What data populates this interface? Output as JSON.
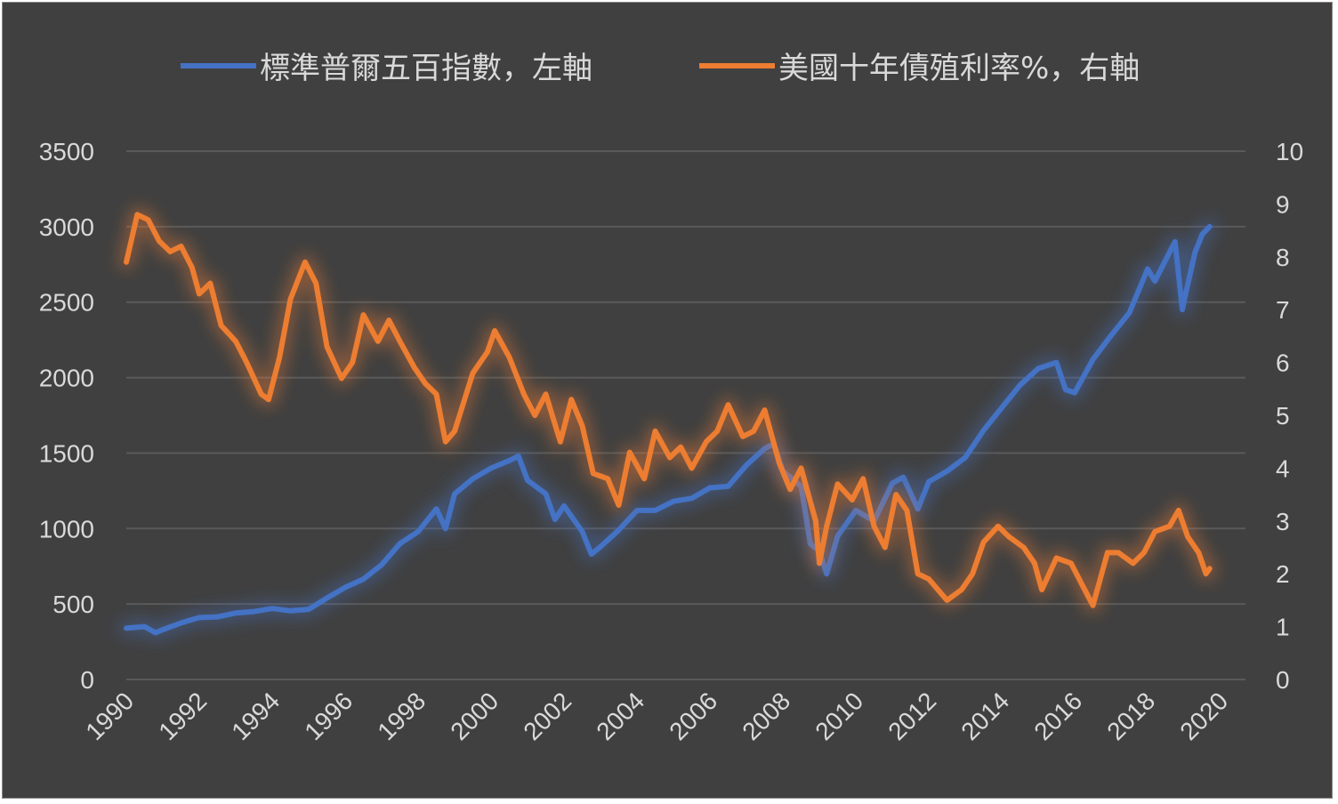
{
  "chart_data": {
    "type": "line",
    "title": "",
    "xlabel": "",
    "ylabel": "",
    "x_ticks": [
      "1990",
      "1992",
      "1994",
      "1996",
      "1998",
      "2000",
      "2002",
      "2004",
      "2006",
      "2008",
      "2010",
      "2012",
      "2014",
      "2016",
      "2018",
      "2020"
    ],
    "xlim": [
      1990,
      2020
    ],
    "y_left": {
      "ticks": [
        "0",
        "500",
        "1000",
        "1500",
        "2000",
        "2500",
        "3000",
        "3500"
      ],
      "ylim": [
        0,
        3500
      ]
    },
    "y_right": {
      "ticks": [
        "0",
        "1",
        "2",
        "3",
        "4",
        "5",
        "6",
        "7",
        "8",
        "9",
        "10"
      ],
      "ylim": [
        0,
        10
      ]
    },
    "grid": true,
    "legend_position": "top",
    "series": [
      {
        "name": "標準普爾五百指數，左軸",
        "axis": "left",
        "color": "#4472c4",
        "points": [
          [
            1990.0,
            340
          ],
          [
            1990.5,
            350
          ],
          [
            1990.8,
            310
          ],
          [
            1991.0,
            330
          ],
          [
            1991.5,
            375
          ],
          [
            1992.0,
            410
          ],
          [
            1992.5,
            415
          ],
          [
            1993.0,
            440
          ],
          [
            1993.5,
            450
          ],
          [
            1994.0,
            470
          ],
          [
            1994.5,
            455
          ],
          [
            1995.0,
            465
          ],
          [
            1995.5,
            540
          ],
          [
            1996.0,
            610
          ],
          [
            1996.5,
            665
          ],
          [
            1997.0,
            760
          ],
          [
            1997.5,
            900
          ],
          [
            1998.0,
            980
          ],
          [
            1998.5,
            1130
          ],
          [
            1998.75,
            1000
          ],
          [
            1999.0,
            1230
          ],
          [
            1999.5,
            1330
          ],
          [
            2000.0,
            1400
          ],
          [
            2000.5,
            1450
          ],
          [
            2000.75,
            1480
          ],
          [
            2001.0,
            1320
          ],
          [
            2001.5,
            1230
          ],
          [
            2001.75,
            1060
          ],
          [
            2002.0,
            1150
          ],
          [
            2002.5,
            980
          ],
          [
            2002.75,
            830
          ],
          [
            2003.0,
            880
          ],
          [
            2003.5,
            990
          ],
          [
            2004.0,
            1120
          ],
          [
            2004.5,
            1120
          ],
          [
            2005.0,
            1180
          ],
          [
            2005.5,
            1200
          ],
          [
            2006.0,
            1270
          ],
          [
            2006.5,
            1280
          ],
          [
            2007.0,
            1420
          ],
          [
            2007.5,
            1530
          ],
          [
            2007.75,
            1560
          ],
          [
            2008.0,
            1380
          ],
          [
            2008.5,
            1280
          ],
          [
            2008.75,
            900
          ],
          [
            2009.0,
            850
          ],
          [
            2009.2,
            700
          ],
          [
            2009.5,
            950
          ],
          [
            2010.0,
            1120
          ],
          [
            2010.5,
            1050
          ],
          [
            2011.0,
            1300
          ],
          [
            2011.3,
            1340
          ],
          [
            2011.7,
            1130
          ],
          [
            2012.0,
            1310
          ],
          [
            2012.5,
            1380
          ],
          [
            2013.0,
            1470
          ],
          [
            2013.5,
            1650
          ],
          [
            2014.0,
            1800
          ],
          [
            2014.5,
            1950
          ],
          [
            2015.0,
            2060
          ],
          [
            2015.5,
            2100
          ],
          [
            2015.75,
            1920
          ],
          [
            2016.0,
            1900
          ],
          [
            2016.5,
            2120
          ],
          [
            2017.0,
            2280
          ],
          [
            2017.5,
            2430
          ],
          [
            2018.0,
            2720
          ],
          [
            2018.2,
            2640
          ],
          [
            2018.75,
            2900
          ],
          [
            2018.95,
            2450
          ],
          [
            2019.0,
            2510
          ],
          [
            2019.3,
            2830
          ],
          [
            2019.5,
            2950
          ],
          [
            2019.7,
            3000
          ]
        ]
      },
      {
        "name": "美國十年債殖利率%，右軸",
        "axis": "right",
        "color": "#ed7d31",
        "points": [
          [
            1990.0,
            7.9
          ],
          [
            1990.3,
            8.8
          ],
          [
            1990.6,
            8.7
          ],
          [
            1990.9,
            8.3
          ],
          [
            1991.2,
            8.1
          ],
          [
            1991.5,
            8.2
          ],
          [
            1991.8,
            7.8
          ],
          [
            1992.0,
            7.3
          ],
          [
            1992.3,
            7.5
          ],
          [
            1992.6,
            6.7
          ],
          [
            1993.0,
            6.4
          ],
          [
            1993.3,
            6.0
          ],
          [
            1993.7,
            5.4
          ],
          [
            1993.9,
            5.3
          ],
          [
            1994.2,
            6.1
          ],
          [
            1994.5,
            7.2
          ],
          [
            1994.9,
            7.9
          ],
          [
            1995.2,
            7.5
          ],
          [
            1995.5,
            6.3
          ],
          [
            1995.9,
            5.7
          ],
          [
            1996.2,
            6.0
          ],
          [
            1996.5,
            6.9
          ],
          [
            1996.9,
            6.4
          ],
          [
            1997.2,
            6.8
          ],
          [
            1997.5,
            6.4
          ],
          [
            1997.9,
            5.9
          ],
          [
            1998.2,
            5.6
          ],
          [
            1998.5,
            5.4
          ],
          [
            1998.75,
            4.5
          ],
          [
            1999.0,
            4.7
          ],
          [
            1999.5,
            5.8
          ],
          [
            1999.9,
            6.2
          ],
          [
            2000.1,
            6.6
          ],
          [
            2000.5,
            6.1
          ],
          [
            2000.9,
            5.4
          ],
          [
            2001.2,
            5.0
          ],
          [
            2001.5,
            5.4
          ],
          [
            2001.9,
            4.5
          ],
          [
            2002.2,
            5.3
          ],
          [
            2002.5,
            4.8
          ],
          [
            2002.8,
            3.9
          ],
          [
            2003.2,
            3.8
          ],
          [
            2003.5,
            3.3
          ],
          [
            2003.8,
            4.3
          ],
          [
            2004.2,
            3.8
          ],
          [
            2004.5,
            4.7
          ],
          [
            2004.9,
            4.2
          ],
          [
            2005.2,
            4.4
          ],
          [
            2005.5,
            4.0
          ],
          [
            2005.9,
            4.5
          ],
          [
            2006.2,
            4.7
          ],
          [
            2006.5,
            5.2
          ],
          [
            2006.9,
            4.6
          ],
          [
            2007.2,
            4.7
          ],
          [
            2007.5,
            5.1
          ],
          [
            2007.9,
            4.1
          ],
          [
            2008.2,
            3.6
          ],
          [
            2008.5,
            4.0
          ],
          [
            2008.9,
            3.0
          ],
          [
            2009.0,
            2.2
          ],
          [
            2009.2,
            2.9
          ],
          [
            2009.5,
            3.7
          ],
          [
            2009.9,
            3.4
          ],
          [
            2010.2,
            3.8
          ],
          [
            2010.5,
            2.9
          ],
          [
            2010.8,
            2.5
          ],
          [
            2011.1,
            3.5
          ],
          [
            2011.4,
            3.2
          ],
          [
            2011.7,
            2.0
          ],
          [
            2012.0,
            1.9
          ],
          [
            2012.5,
            1.5
          ],
          [
            2012.9,
            1.7
          ],
          [
            2013.2,
            2.0
          ],
          [
            2013.5,
            2.6
          ],
          [
            2013.9,
            2.9
          ],
          [
            2014.2,
            2.7
          ],
          [
            2014.6,
            2.5
          ],
          [
            2014.9,
            2.2
          ],
          [
            2015.1,
            1.7
          ],
          [
            2015.5,
            2.3
          ],
          [
            2015.9,
            2.2
          ],
          [
            2016.2,
            1.8
          ],
          [
            2016.5,
            1.4
          ],
          [
            2016.9,
            2.4
          ],
          [
            2017.2,
            2.4
          ],
          [
            2017.6,
            2.2
          ],
          [
            2017.9,
            2.4
          ],
          [
            2018.2,
            2.8
          ],
          [
            2018.6,
            2.9
          ],
          [
            2018.85,
            3.2
          ],
          [
            2019.1,
            2.7
          ],
          [
            2019.4,
            2.4
          ],
          [
            2019.6,
            2.0
          ],
          [
            2019.7,
            2.1
          ]
        ]
      }
    ]
  }
}
